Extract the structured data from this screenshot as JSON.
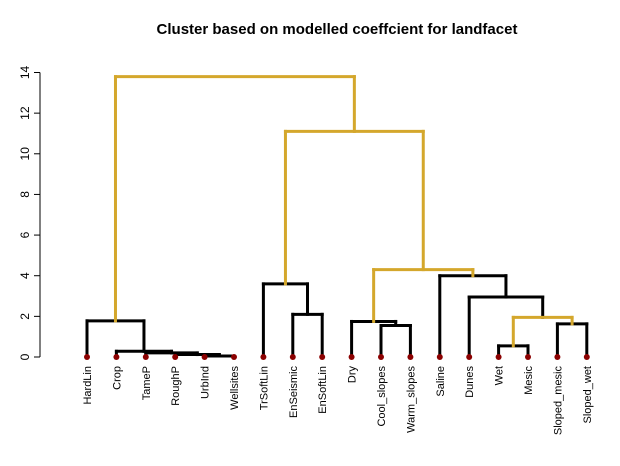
{
  "chart_data": {
    "type": "dendrogram",
    "title": "Cluster based on modelled coeffcient for landfacet",
    "xlabel": "",
    "ylabel": "",
    "ylim": [
      0,
      14
    ],
    "yticks": [
      0,
      2,
      4,
      6,
      8,
      10,
      12,
      14
    ],
    "grid": false,
    "highlight_color": "#D4A72C",
    "base_color": "#000000",
    "leaf_point_color": "#8B0000",
    "leaves": [
      "HardLin",
      "Crop",
      "TameP",
      "RoughP",
      "UrbInd",
      "Wellsites",
      "TrSoftLin",
      "EnSeismic",
      "EnSoftLin",
      "Dry",
      "Cool_slopes",
      "Warm_slopes",
      "Saline",
      "Dunes",
      "Wet",
      "Mesic",
      "Sloped_mesic",
      "Sloped_wet"
    ],
    "merges": [
      {
        "id": "m1",
        "children": [
          "UrbInd",
          "Wellsites"
        ],
        "height": 0.05,
        "highlight": false
      },
      {
        "id": "m2",
        "children": [
          "RoughP",
          "m1"
        ],
        "height": 0.12,
        "highlight": false
      },
      {
        "id": "m3",
        "children": [
          "Wet",
          "Mesic"
        ],
        "height": 0.55,
        "highlight": false
      },
      {
        "id": "m4",
        "children": [
          "TameP",
          "m2"
        ],
        "height": 0.2,
        "highlight": false
      },
      {
        "id": "m5",
        "children": [
          "Crop",
          "m4"
        ],
        "height": 0.28,
        "highlight": false
      },
      {
        "id": "m6",
        "children": [
          "Cool_slopes",
          "Warm_slopes"
        ],
        "height": 1.55,
        "highlight": false
      },
      {
        "id": "m7",
        "children": [
          "Sloped_mesic",
          "Sloped_wet"
        ],
        "height": 1.63,
        "highlight": false
      },
      {
        "id": "m8",
        "children": [
          "Dry",
          "m6"
        ],
        "height": 1.75,
        "highlight": false
      },
      {
        "id": "m9",
        "children": [
          "HardLin",
          "m5"
        ],
        "height": 1.78,
        "highlight": false
      },
      {
        "id": "m10",
        "children": [
          "m3",
          "m7"
        ],
        "height": 1.95,
        "highlight": true
      },
      {
        "id": "m11",
        "children": [
          "EnSeismic",
          "EnSoftLin"
        ],
        "height": 2.1,
        "highlight": false
      },
      {
        "id": "m12",
        "children": [
          "Dunes",
          "m10"
        ],
        "height": 2.95,
        "highlight": false
      },
      {
        "id": "m13",
        "children": [
          "TrSoftLin",
          "m11"
        ],
        "height": 3.6,
        "highlight": false
      },
      {
        "id": "m14",
        "children": [
          "Saline",
          "m12"
        ],
        "height": 4.0,
        "highlight": false
      },
      {
        "id": "m15",
        "children": [
          "m8",
          "m14"
        ],
        "height": 4.3,
        "highlight": true
      },
      {
        "id": "m16",
        "children": [
          "m13",
          "m15"
        ],
        "height": 11.1,
        "highlight": true
      },
      {
        "id": "m17",
        "children": [
          "m9",
          "m16"
        ],
        "height": 13.8,
        "highlight": true
      }
    ]
  }
}
